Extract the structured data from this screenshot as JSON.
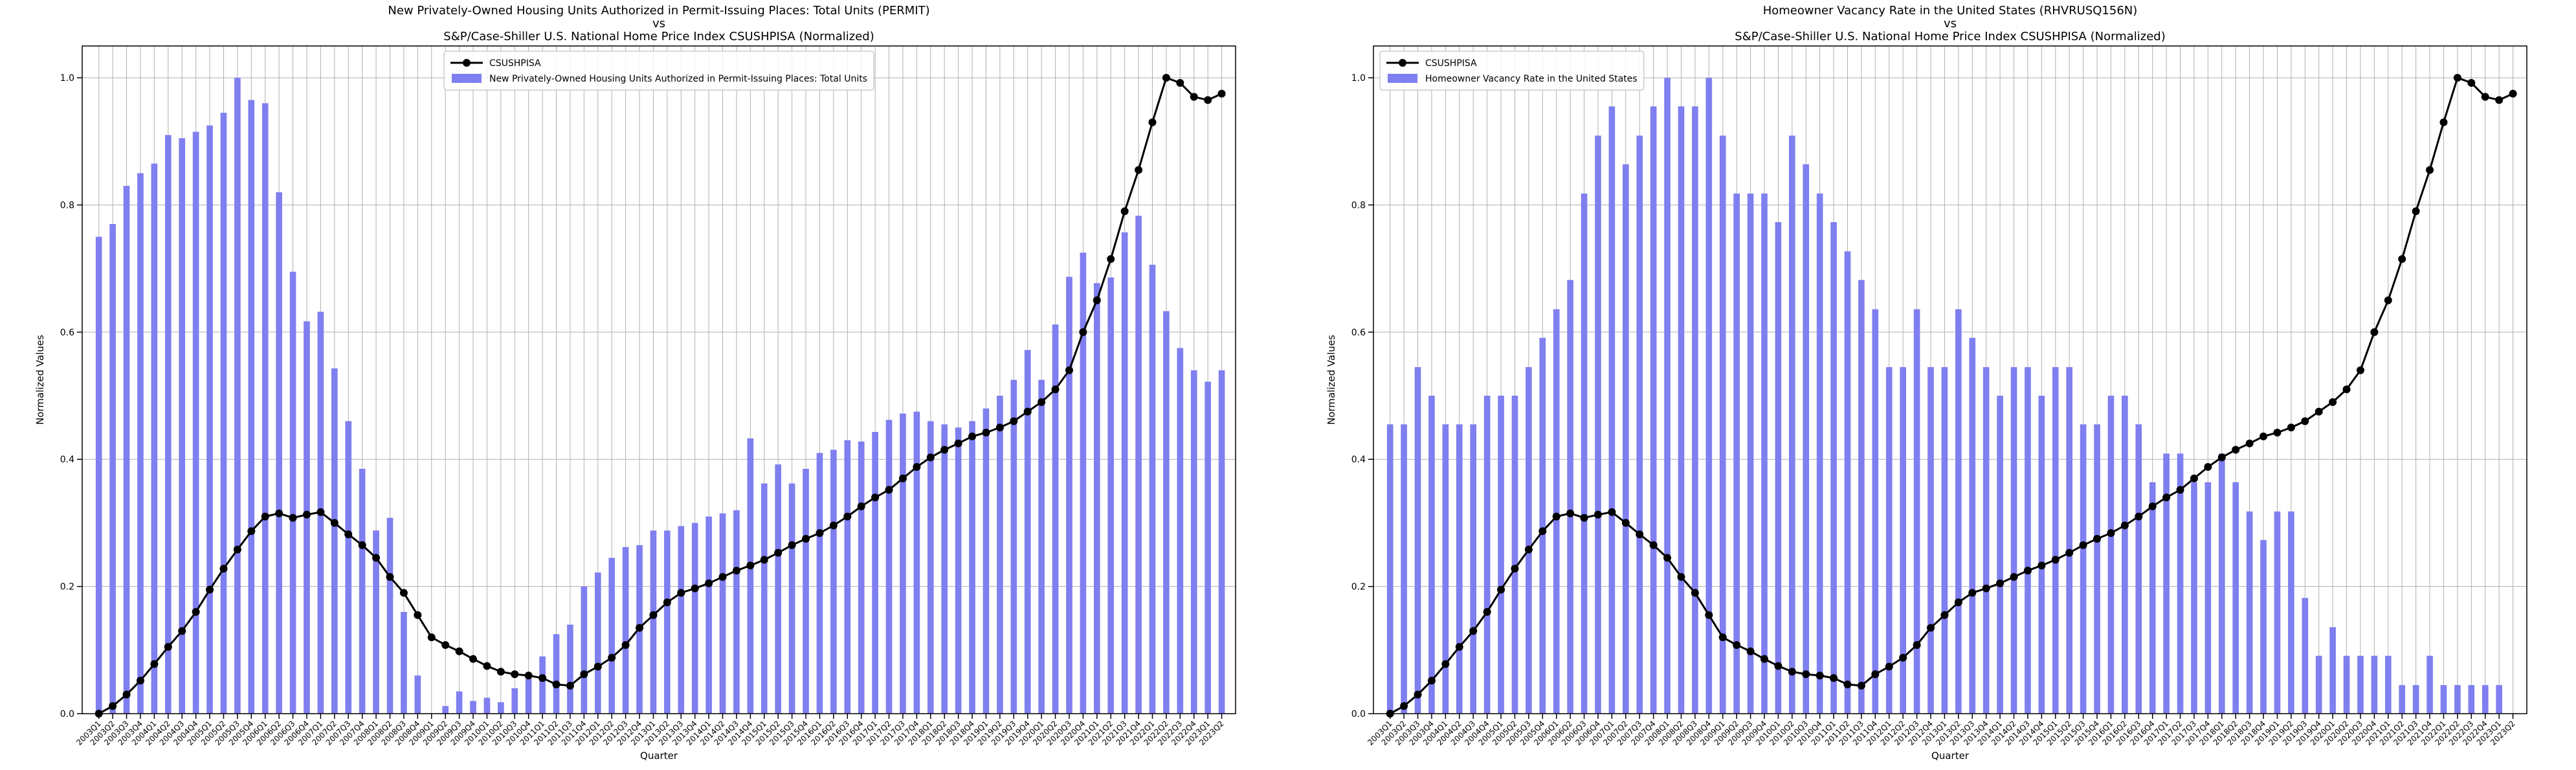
{
  "chart_data": [
    {
      "type": "combo",
      "title": [
        "New Privately-Owned Housing Units Authorized in Permit-Issuing Places: Total Units (PERMIT)",
        "vs",
        "S&P/Case-Shiller U.S. National Home Price Index CSUSHPISA (Normalized)"
      ],
      "x_label": "Quarter",
      "y_label": "Normalized Values",
      "categories": [
        "2003Q1",
        "2003Q2",
        "2003Q3",
        "2003Q4",
        "2004Q1",
        "2004Q2",
        "2004Q3",
        "2004Q4",
        "2005Q1",
        "2005Q2",
        "2005Q3",
        "2005Q4",
        "2006Q1",
        "2006Q2",
        "2006Q3",
        "2006Q4",
        "2007Q1",
        "2007Q2",
        "2007Q3",
        "2007Q4",
        "2008Q1",
        "2008Q2",
        "2008Q3",
        "2008Q4",
        "2009Q1",
        "2009Q2",
        "2009Q3",
        "2009Q4",
        "2010Q1",
        "2010Q2",
        "2010Q3",
        "2010Q4",
        "2011Q1",
        "2011Q2",
        "2011Q3",
        "2011Q4",
        "2012Q1",
        "2012Q2",
        "2012Q3",
        "2012Q4",
        "2013Q1",
        "2013Q2",
        "2013Q3",
        "2013Q4",
        "2014Q1",
        "2014Q2",
        "2014Q3",
        "2014Q4",
        "2015Q1",
        "2015Q2",
        "2015Q3",
        "2015Q4",
        "2016Q1",
        "2016Q2",
        "2016Q3",
        "2016Q4",
        "2017Q1",
        "2017Q2",
        "2017Q3",
        "2017Q4",
        "2018Q1",
        "2018Q2",
        "2018Q3",
        "2018Q4",
        "2019Q1",
        "2019Q2",
        "2019Q3",
        "2019Q4",
        "2020Q1",
        "2020Q2",
        "2020Q3",
        "2020Q4",
        "2021Q1",
        "2021Q2",
        "2021Q3",
        "2021Q4",
        "2022Q1",
        "2022Q2",
        "2022Q3",
        "2022Q4",
        "2023Q1",
        "2023Q2"
      ],
      "series": [
        {
          "name": "CSUSHPISA",
          "type": "line",
          "color": "#000000",
          "values": [
            0,
            0.012,
            0.03,
            0.052,
            0.078,
            0.105,
            0.13,
            0.16,
            0.195,
            0.228,
            0.258,
            0.287,
            0.31,
            0.315,
            0.308,
            0.313,
            0.317,
            0.3,
            0.282,
            0.265,
            0.245,
            0.215,
            0.19,
            0.155,
            0.12,
            0.108,
            0.098,
            0.086,
            0.075,
            0.066,
            0.062,
            0.06,
            0.056,
            0.046,
            0.044,
            0.062,
            0.074,
            0.088,
            0.108,
            0.135,
            0.155,
            0.175,
            0.19,
            0.197,
            0.205,
            0.215,
            0.225,
            0.233,
            0.242,
            0.253,
            0.265,
            0.275,
            0.284,
            0.296,
            0.31,
            0.326,
            0.34,
            0.352,
            0.37,
            0.388,
            0.403,
            0.415,
            0.425,
            0.436,
            0.442,
            0.45,
            0.46,
            0.475,
            0.49,
            0.51,
            0.54,
            0.6,
            0.65,
            0.715,
            0.79,
            0.855,
            0.93,
            1.0,
            0.992,
            0.97,
            0.965,
            0.975
          ]
        },
        {
          "name": "New Privately-Owned Housing Units Authorized in Permit-Issuing Places: Total Units",
          "type": "bar",
          "color": "#7f7ff0",
          "values": [
            0.75,
            0.77,
            0.83,
            0.85,
            0.865,
            0.91,
            0.905,
            0.915,
            0.925,
            0.945,
            1.0,
            0.965,
            0.96,
            0.82,
            0.695,
            0.617,
            0.632,
            0.543,
            0.46,
            0.385,
            0.288,
            0.308,
            0.16,
            0.06,
            0.0,
            0.012,
            0.035,
            0.02,
            0.025,
            0.018,
            0.04,
            0.055,
            0.09,
            0.125,
            0.14,
            0.2,
            0.222,
            0.245,
            0.262,
            0.265,
            0.288,
            0.288,
            0.295,
            0.3,
            0.31,
            0.315,
            0.32,
            0.433,
            0.362,
            0.392,
            0.362,
            0.385,
            0.41,
            0.415,
            0.43,
            0.428,
            0.443,
            0.462,
            0.472,
            0.475,
            0.46,
            0.455,
            0.45,
            0.46,
            0.48,
            0.5,
            0.525,
            0.572,
            0.525,
            0.612,
            0.687,
            0.725,
            0.677,
            0.686,
            0.757,
            0.783,
            0.706,
            0.633,
            0.575,
            0.54,
            0.522,
            0.54
          ]
        }
      ],
      "ylim": [
        0,
        1.05
      ],
      "yticks": [
        {
          "value": 0,
          "label": "0.0"
        },
        0.2,
        0.4,
        0.6,
        0.8,
        {
          "value": 1,
          "label": "1.0"
        }
      ],
      "grid": true,
      "legend": "upper center"
    },
    {
      "type": "combo",
      "title": [
        "Homeowner Vacancy Rate in the United States (RHVRUSQ156N)",
        "vs",
        "S&P/Case-Shiller U.S. National Home Price Index CSUSHPISA (Normalized)"
      ],
      "x_label": "Quarter",
      "y_label": "Normalized Values",
      "categories": [
        "2003Q1",
        "2003Q2",
        "2003Q3",
        "2003Q4",
        "2004Q1",
        "2004Q2",
        "2004Q3",
        "2004Q4",
        "2005Q1",
        "2005Q2",
        "2005Q3",
        "2005Q4",
        "2006Q1",
        "2006Q2",
        "2006Q3",
        "2006Q4",
        "2007Q1",
        "2007Q2",
        "2007Q3",
        "2007Q4",
        "2008Q1",
        "2008Q2",
        "2008Q3",
        "2008Q4",
        "2009Q1",
        "2009Q2",
        "2009Q3",
        "2009Q4",
        "2010Q1",
        "2010Q2",
        "2010Q3",
        "2010Q4",
        "2011Q1",
        "2011Q2",
        "2011Q3",
        "2011Q4",
        "2012Q1",
        "2012Q2",
        "2012Q3",
        "2012Q4",
        "2013Q1",
        "2013Q2",
        "2013Q3",
        "2013Q4",
        "2014Q1",
        "2014Q2",
        "2014Q3",
        "2014Q4",
        "2015Q1",
        "2015Q2",
        "2015Q3",
        "2015Q4",
        "2016Q1",
        "2016Q2",
        "2016Q3",
        "2016Q4",
        "2017Q1",
        "2017Q2",
        "2017Q3",
        "2017Q4",
        "2018Q1",
        "2018Q2",
        "2018Q3",
        "2018Q4",
        "2019Q1",
        "2019Q2",
        "2019Q3",
        "2019Q4",
        "2020Q1",
        "2020Q2",
        "2020Q3",
        "2020Q4",
        "2021Q1",
        "2021Q2",
        "2021Q3",
        "2021Q4",
        "2022Q1",
        "2022Q2",
        "2022Q3",
        "2022Q4",
        "2023Q1",
        "2023Q2"
      ],
      "series": [
        {
          "name": "CSUSHPISA",
          "type": "line",
          "color": "#000000",
          "values": [
            0,
            0.012,
            0.03,
            0.052,
            0.078,
            0.105,
            0.13,
            0.16,
            0.195,
            0.228,
            0.258,
            0.287,
            0.31,
            0.315,
            0.308,
            0.313,
            0.317,
            0.3,
            0.282,
            0.265,
            0.245,
            0.215,
            0.19,
            0.155,
            0.12,
            0.108,
            0.098,
            0.086,
            0.075,
            0.066,
            0.062,
            0.06,
            0.056,
            0.046,
            0.044,
            0.062,
            0.074,
            0.088,
            0.108,
            0.135,
            0.155,
            0.175,
            0.19,
            0.197,
            0.205,
            0.215,
            0.225,
            0.233,
            0.242,
            0.253,
            0.265,
            0.275,
            0.284,
            0.296,
            0.31,
            0.326,
            0.34,
            0.352,
            0.37,
            0.388,
            0.403,
            0.415,
            0.425,
            0.436,
            0.442,
            0.45,
            0.46,
            0.475,
            0.49,
            0.51,
            0.54,
            0.6,
            0.65,
            0.715,
            0.79,
            0.855,
            0.93,
            1.0,
            0.992,
            0.97,
            0.965,
            0.975
          ]
        },
        {
          "name": "Homeowner Vacancy Rate in the United States",
          "type": "bar",
          "color": "#7f7ff0",
          "values": [
            0.455,
            0.455,
            0.545,
            0.5,
            0.455,
            0.455,
            0.455,
            0.5,
            0.5,
            0.5,
            0.545,
            0.591,
            0.636,
            0.682,
            0.818,
            0.909,
            0.955,
            0.864,
            0.909,
            0.955,
            1.0,
            0.955,
            0.955,
            1.0,
            0.909,
            0.818,
            0.818,
            0.818,
            0.773,
            0.909,
            0.864,
            0.818,
            0.773,
            0.727,
            0.682,
            0.636,
            0.545,
            0.545,
            0.636,
            0.545,
            0.545,
            0.636,
            0.591,
            0.545,
            0.5,
            0.545,
            0.545,
            0.5,
            0.545,
            0.545,
            0.455,
            0.455,
            0.5,
            0.5,
            0.455,
            0.364,
            0.409,
            0.409,
            0.364,
            0.364,
            0.409,
            0.364,
            0.318,
            0.273,
            0.318,
            0.318,
            0.182,
            0.091,
            0.136,
            0.091,
            0.091,
            0.091,
            0.091,
            0.045,
            0.045,
            0.091,
            0.045,
            0.045,
            0.045,
            0.045,
            0.045,
            0.0
          ]
        }
      ],
      "ylim": [
        0,
        1.05
      ],
      "yticks": [
        {
          "value": 0,
          "label": "0.0"
        },
        0.2,
        0.4,
        0.6,
        0.8,
        {
          "value": 1,
          "label": "1.0"
        }
      ],
      "grid": true,
      "legend": "upper left"
    }
  ]
}
